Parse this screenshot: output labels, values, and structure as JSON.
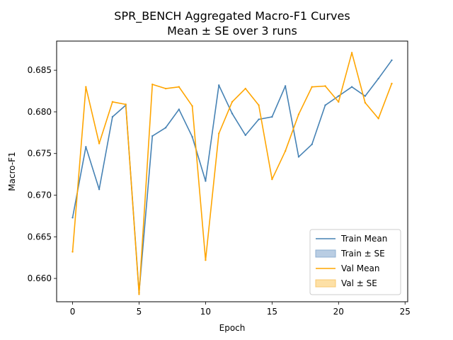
{
  "chart_data": {
    "type": "line",
    "title": "SPR_BENCH Aggregated Macro-F1 Curves",
    "subtitle": "Mean ± SE over 3 runs",
    "xlabel": "Epoch",
    "ylabel": "Macro-F1",
    "xlim": [
      -1.2,
      25.2
    ],
    "ylim": [
      0.6572,
      0.6885
    ],
    "x_ticks": [
      0,
      5,
      10,
      15,
      20,
      25
    ],
    "y_ticks": [
      0.66,
      0.665,
      0.67,
      0.675,
      0.68,
      0.685
    ],
    "grid": false,
    "legend_placement": "lower-right",
    "x": [
      0,
      1,
      2,
      3,
      4,
      5,
      6,
      7,
      8,
      9,
      10,
      11,
      12,
      13,
      14,
      15,
      16,
      17,
      18,
      19,
      20,
      21,
      22,
      23,
      24
    ],
    "series": [
      {
        "name": "Train Mean",
        "color": "#4682b4",
        "values": [
          0.6673,
          0.6758,
          0.6707,
          0.6794,
          0.6808,
          0.6583,
          0.6771,
          0.6781,
          0.6803,
          0.677,
          0.6717,
          0.6832,
          0.6798,
          0.6772,
          0.6791,
          0.6794,
          0.6831,
          0.6746,
          0.6761,
          0.6808,
          0.6819,
          0.683,
          0.6819,
          0.684,
          0.6862
        ]
      },
      {
        "name": "Val Mean",
        "color": "#ffa500",
        "values": [
          0.6632,
          0.683,
          0.6762,
          0.6812,
          0.6809,
          0.6581,
          0.6833,
          0.6828,
          0.683,
          0.6807,
          0.6622,
          0.6774,
          0.6812,
          0.6828,
          0.6808,
          0.6719,
          0.6753,
          0.6797,
          0.683,
          0.6831,
          0.6812,
          0.6871,
          0.6811,
          0.6792,
          0.6834
        ]
      }
    ],
    "legend": [
      {
        "label": "Train Mean",
        "kind": "line",
        "color": "#4682b4"
      },
      {
        "label": "Train ± SE",
        "kind": "patch",
        "color": "#b9cde3",
        "edge": "#8fb0d1"
      },
      {
        "label": "Val Mean",
        "kind": "line",
        "color": "#ffa500"
      },
      {
        "label": "Val ± SE",
        "kind": "patch",
        "color": "#fde0a6",
        "edge": "#f8c970"
      }
    ]
  }
}
